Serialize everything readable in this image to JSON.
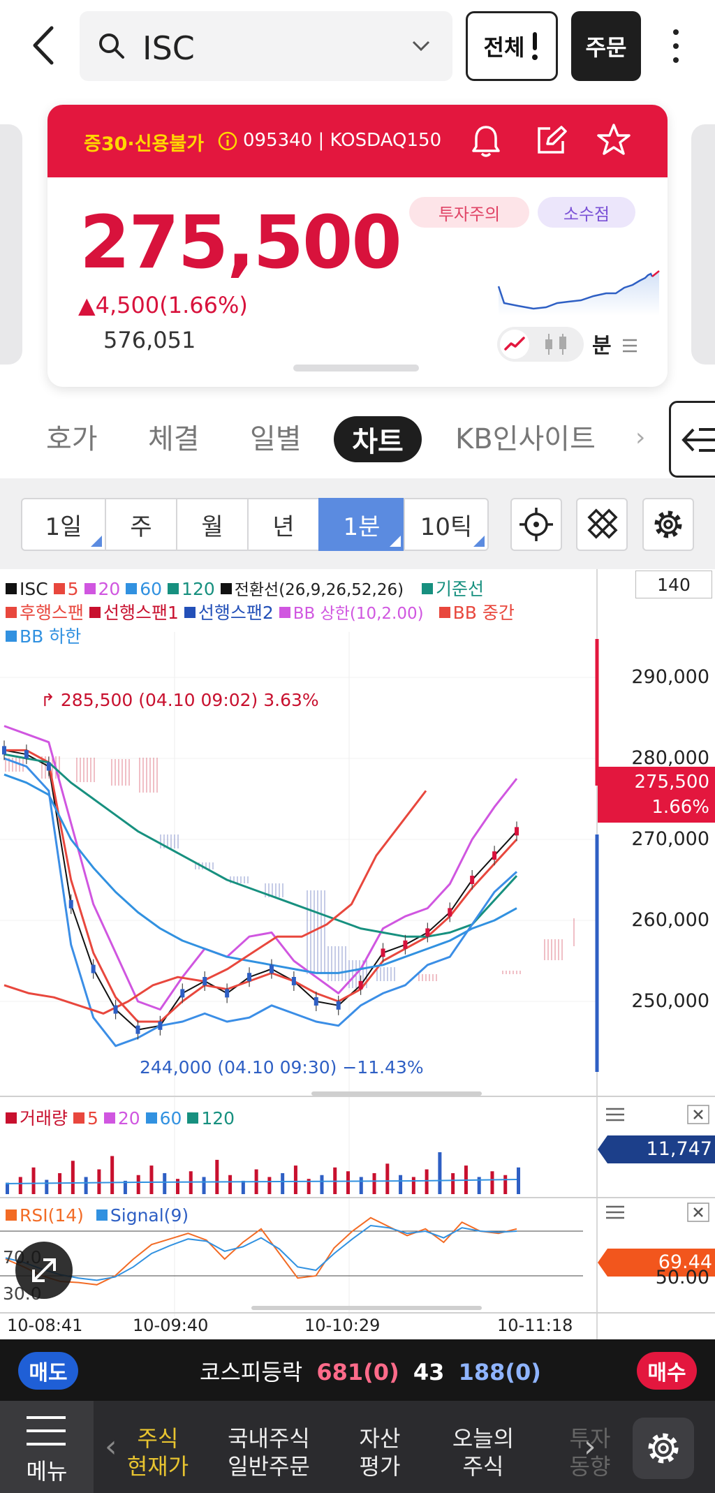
{
  "search": {
    "query": "ISC"
  },
  "header": {
    "all_label": "전체",
    "order_label": "주문"
  },
  "card": {
    "tags": "증30·신용불가",
    "code": "095340 | KOSDAQ150",
    "price": "275,500",
    "change": "▲4,500(1.66%)",
    "volume": "576,051",
    "badge_caution": "투자주의",
    "badge_decimal": "소수점",
    "unit_label": "분"
  },
  "tabs": [
    "호가",
    "체결",
    "일별",
    "차트",
    "KB인사이트"
  ],
  "active_tab": "차트",
  "periods": [
    "1일",
    "주",
    "월",
    "년",
    "1분",
    "10틱"
  ],
  "chart_data": [
    {
      "type": "line",
      "legend_row1": [
        "ISC",
        "5",
        "20",
        "60",
        "120",
        "전환선(26,9,26,52,26)",
        "기준선"
      ],
      "legend_row2": [
        "후행스팬",
        "선행스팬1",
        "선행스팬2",
        "BB 상한(10,2.00)",
        "BB 중간"
      ],
      "legend_row3": [
        "BB 하한"
      ],
      "y_tick_labels": [
        "290,000",
        "280,000",
        "270,000",
        "260,000",
        "250,000"
      ],
      "ylim": [
        243000,
        294000
      ],
      "axis_top_value": "140",
      "current_price": "275,500",
      "current_change": "1.66%",
      "annotation_high": "285,500 (04.10 09:02) 3.63%",
      "annotation_low": "244,000 (04.10 09:30) −11.43%",
      "series": [
        {
          "name": "ISC",
          "color": "#111111",
          "values": [
            281000,
            280500,
            279000,
            262000,
            254000,
            249000,
            246500,
            247000,
            251000,
            252500,
            251000,
            253000,
            254000,
            252500,
            250000,
            249500,
            252000,
            256000,
            257000,
            258500,
            261000,
            265000,
            268000,
            271000
          ]
        },
        {
          "name": "5",
          "color": "#e8473d",
          "values": [
            281000,
            281000,
            279500,
            265000,
            256000,
            250500,
            247500,
            247500,
            250000,
            252000,
            251500,
            252500,
            253500,
            252500,
            251000,
            250000,
            251500,
            255000,
            256500,
            258000,
            260500,
            264000,
            267000,
            270000
          ]
        },
        {
          "name": "20",
          "color": "#d056e0",
          "values": [
            284000,
            283000,
            282000,
            272000,
            262000,
            256000,
            250000,
            249000,
            253000,
            256500,
            255500,
            258000,
            258500,
            255000,
            253000,
            251000,
            254000,
            259000,
            260500,
            261500,
            264500,
            270000,
            274000,
            277500
          ]
        },
        {
          "name": "60",
          "color": "#3191e0",
          "values": [
            278000,
            277000,
            275500,
            270000,
            266500,
            263500,
            261000,
            259000,
            257500,
            256500,
            255500,
            255000,
            254500,
            254000,
            253500,
            253500,
            254000,
            254500,
            255500,
            256500,
            257500,
            259000,
            260000,
            261500
          ]
        },
        {
          "name": "120",
          "color": "#17907f",
          "values": [
            280500,
            280000,
            279500,
            277000,
            275000,
            273000,
            271000,
            269500,
            268000,
            266500,
            265000,
            264000,
            263000,
            262000,
            261000,
            260000,
            259000,
            258500,
            258000,
            258000,
            258500,
            259500,
            262500,
            265500
          ]
        },
        {
          "name": "BB 하한",
          "color": "#3b8ee6",
          "values": [
            280000,
            279000,
            276000,
            257000,
            248000,
            244500,
            245500,
            247000,
            247500,
            248500,
            247500,
            248000,
            249500,
            248500,
            247500,
            247000,
            249500,
            251000,
            252000,
            254500,
            255500,
            259500,
            263500,
            266000
          ]
        },
        {
          "name": "후행스팬",
          "color": "#e8473d",
          "values": [
            252000,
            251000,
            250500,
            249500,
            248500,
            250000,
            252000,
            253000,
            252500,
            254000,
            256000,
            258000,
            258000,
            259500,
            262000,
            268000,
            272000,
            276000
          ]
        }
      ]
    },
    {
      "type": "bar",
      "legend": [
        "거래량",
        "5",
        "20",
        "60",
        "120"
      ],
      "current_value": "11,747",
      "values": [
        12,
        18,
        28,
        15,
        22,
        35,
        18,
        26,
        40,
        14,
        20,
        30,
        22,
        16,
        24,
        18,
        36,
        20,
        14,
        26,
        18,
        22,
        30,
        16,
        20,
        28,
        24,
        18,
        22,
        32,
        20,
        18,
        26,
        44,
        22,
        30,
        18,
        24,
        20,
        28
      ]
    },
    {
      "type": "line",
      "legend": [
        "RSI(14)",
        "Signal(9)"
      ],
      "y_tick_labels": [
        "70.0",
        "30.0"
      ],
      "current_value": "69.44",
      "axis_value": "50.00",
      "x_tick_labels": [
        "10-08:41",
        "10-09:40",
        "10-10:29",
        "10-11:18"
      ],
      "series": [
        {
          "name": "RSI(14)",
          "color": "#f26b25",
          "values": [
            45,
            38,
            30,
            25,
            24,
            22,
            30,
            45,
            58,
            63,
            68,
            62,
            45,
            60,
            72,
            50,
            28,
            30,
            55,
            70,
            82,
            74,
            66,
            72,
            60,
            78,
            70,
            68,
            72
          ]
        },
        {
          "name": "Signal(9)",
          "color": "#3191e0",
          "values": [
            46,
            42,
            36,
            31,
            28,
            26,
            29,
            38,
            50,
            57,
            63,
            61,
            52,
            56,
            64,
            54,
            38,
            35,
            50,
            63,
            75,
            73,
            68,
            70,
            64,
            73,
            70,
            69,
            70
          ]
        }
      ]
    }
  ],
  "market": {
    "sell_label": "매도",
    "buy_label": "매수",
    "title": "코스피등락",
    "up": "681(0)",
    "flat": "43",
    "down": "188(0)"
  },
  "nav": {
    "menu_label": "메뉴",
    "items": [
      "주식\n현재가",
      "국내주식\n일반주문",
      "자산\n평가",
      "오늘의\n주식",
      "투자\n동향"
    ]
  }
}
